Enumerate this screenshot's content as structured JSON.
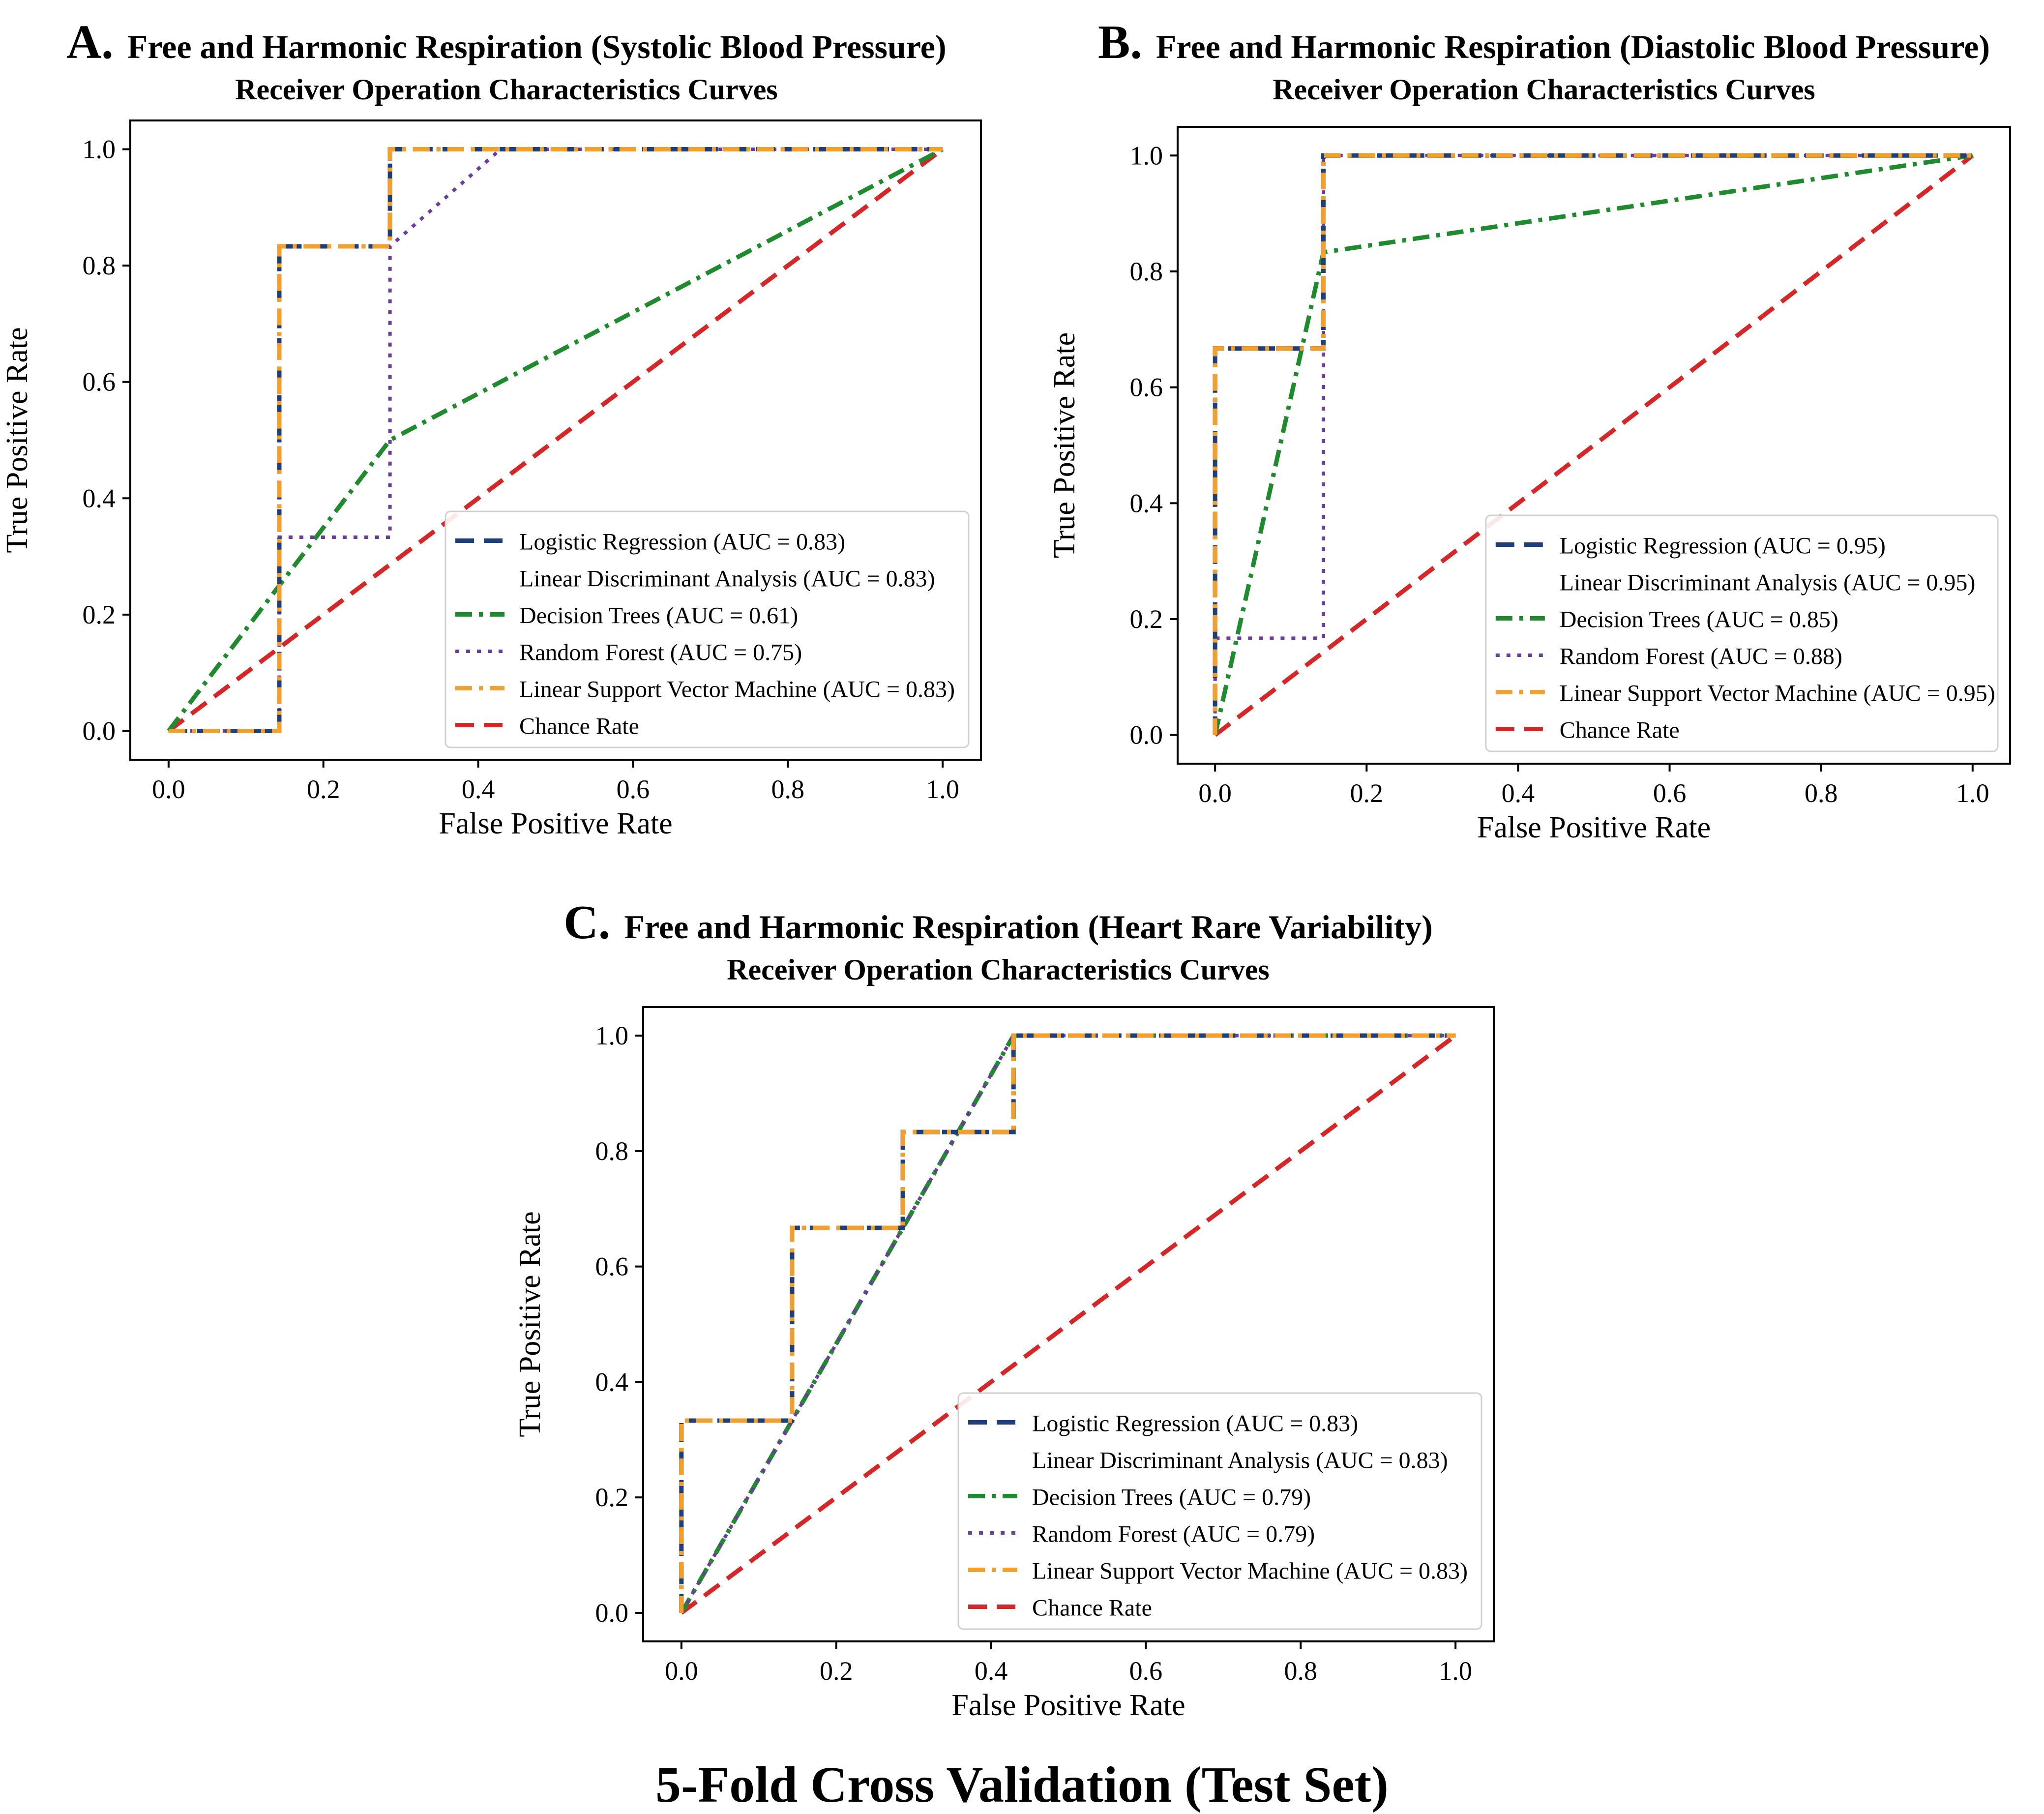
{
  "figure_title": "5-Fold Cross Validation (Test Set)",
  "chart_data": [
    {
      "panel": "A.",
      "type": "line",
      "title": "Free and Harmonic Respiration (Systolic Blood Pressure)",
      "subtitle": "Receiver Operation Characteristics Curves",
      "xlabel": "False Positive Rate",
      "ylabel": "True Positive Rate",
      "xlim": [
        0,
        1
      ],
      "ylim": [
        0,
        1
      ],
      "xticks": [
        "0.0",
        "0.2",
        "0.4",
        "0.6",
        "0.8",
        "1.0"
      ],
      "yticks": [
        "0.0",
        "0.2",
        "0.4",
        "0.6",
        "0.8",
        "1.0"
      ],
      "legend_position": "lower-right",
      "series": [
        {
          "name": "Logistic Regression (AUC = 0.83)",
          "style": "dashed",
          "color": "#1f3f7a",
          "x": [
            0,
            0.143,
            0.143,
            0.286,
            0.286,
            1.0
          ],
          "y": [
            0,
            0,
            0.833,
            0.833,
            1.0,
            1.0
          ]
        },
        {
          "name": "Linear Discriminant Analysis (AUC = 0.83)",
          "style": "dashdot",
          "color": "#111111",
          "x": [
            0,
            0.143,
            0.143,
            0.286,
            0.286,
            1.0
          ],
          "y": [
            0,
            0,
            0.833,
            0.833,
            1.0,
            1.0
          ]
        },
        {
          "name": "Decision Trees (AUC = 0.61)",
          "style": "dashdot",
          "color": "#1f8a2e",
          "x": [
            0,
            0.286,
            1.0
          ],
          "y": [
            0,
            0.5,
            1.0
          ]
        },
        {
          "name": "Random Forest (AUC = 0.75)",
          "style": "dotted",
          "color": "#6a3d9a",
          "x": [
            0,
            0.143,
            0.143,
            0.286,
            0.286,
            0.429,
            1.0
          ],
          "y": [
            0,
            0,
            0.333,
            0.333,
            0.833,
            1.0,
            1.0
          ]
        },
        {
          "name": "Linear Support Vector Machine (AUC = 0.83)",
          "style": "dashdot",
          "color": "#f0a030",
          "x": [
            0,
            0.143,
            0.143,
            0.286,
            0.286,
            1.0
          ],
          "y": [
            0,
            0,
            0.833,
            0.833,
            1.0,
            1.0
          ]
        },
        {
          "name": "Chance Rate",
          "style": "dashed",
          "color": "#d62728",
          "x": [
            0,
            1
          ],
          "y": [
            0,
            1
          ]
        }
      ]
    },
    {
      "panel": "B.",
      "type": "line",
      "title": "Free and Harmonic Respiration (Diastolic Blood Pressure)",
      "subtitle": "Receiver Operation Characteristics Curves",
      "xlabel": "False Positive Rate",
      "ylabel": "True Positive Rate",
      "xlim": [
        0,
        1
      ],
      "ylim": [
        0,
        1
      ],
      "xticks": [
        "0.0",
        "0.2",
        "0.4",
        "0.6",
        "0.8",
        "1.0"
      ],
      "yticks": [
        "0.0",
        "0.2",
        "0.4",
        "0.6",
        "0.8",
        "1.0"
      ],
      "legend_position": "lower-right",
      "series": [
        {
          "name": "Logistic Regression (AUC = 0.95)",
          "style": "dashed",
          "color": "#1f3f7a",
          "x": [
            0,
            0,
            0.143,
            0.143,
            1.0
          ],
          "y": [
            0,
            0.667,
            0.667,
            1.0,
            1.0
          ]
        },
        {
          "name": "Linear Discriminant Analysis (AUC = 0.95)",
          "style": "dashdot",
          "color": "#111111",
          "x": [
            0,
            0,
            0.143,
            0.143,
            1.0
          ],
          "y": [
            0,
            0.667,
            0.667,
            1.0,
            1.0
          ]
        },
        {
          "name": "Decision Trees (AUC = 0.85)",
          "style": "dashdot",
          "color": "#1f8a2e",
          "x": [
            0,
            0.143,
            1.0
          ],
          "y": [
            0,
            0.833,
            1.0
          ]
        },
        {
          "name": "Random Forest (AUC = 0.88)",
          "style": "dotted",
          "color": "#6a3d9a",
          "x": [
            0,
            0,
            0.143,
            0.143,
            1.0
          ],
          "y": [
            0,
            0.167,
            0.167,
            1.0,
            1.0
          ]
        },
        {
          "name": "Linear Support Vector Machine (AUC = 0.95)",
          "style": "dashdot",
          "color": "#f0a030",
          "x": [
            0,
            0,
            0.143,
            0.143,
            1.0
          ],
          "y": [
            0,
            0.667,
            0.667,
            1.0,
            1.0
          ]
        },
        {
          "name": "Chance Rate",
          "style": "dashed",
          "color": "#d62728",
          "x": [
            0,
            1
          ],
          "y": [
            0,
            1
          ]
        }
      ]
    },
    {
      "panel": "C.",
      "type": "line",
      "title": "Free and Harmonic Respiration (Heart Rare Variability)",
      "subtitle": "Receiver Operation Characteristics Curves",
      "xlabel": "False Positive Rate",
      "ylabel": "True Positive Rate",
      "xlim": [
        0,
        1
      ],
      "ylim": [
        0,
        1
      ],
      "xticks": [
        "0.0",
        "0.2",
        "0.4",
        "0.6",
        "0.8",
        "1.0"
      ],
      "yticks": [
        "0.0",
        "0.2",
        "0.4",
        "0.6",
        "0.8",
        "1.0"
      ],
      "legend_position": "lower-right",
      "series": [
        {
          "name": "Logistic Regression (AUC = 0.83)",
          "style": "dashed",
          "color": "#1f3f7a",
          "x": [
            0,
            0,
            0.143,
            0.143,
            0.286,
            0.286,
            0.429,
            0.429,
            1.0
          ],
          "y": [
            0,
            0.333,
            0.333,
            0.667,
            0.667,
            0.833,
            0.833,
            1.0,
            1.0
          ]
        },
        {
          "name": "Linear Discriminant Analysis (AUC = 0.83)",
          "style": "dashdot",
          "color": "#111111",
          "x": [
            0,
            0,
            0.143,
            0.143,
            0.286,
            0.286,
            0.429,
            0.429,
            1.0
          ],
          "y": [
            0,
            0.333,
            0.333,
            0.667,
            0.667,
            0.833,
            0.833,
            1.0,
            1.0
          ]
        },
        {
          "name": "Decision Trees (AUC = 0.79)",
          "style": "dashdot",
          "color": "#1f8a2e",
          "x": [
            0,
            0.429,
            1.0
          ],
          "y": [
            0,
            1.0,
            1.0
          ]
        },
        {
          "name": "Random Forest (AUC = 0.79)",
          "style": "dotted",
          "color": "#6a3d9a",
          "x": [
            0,
            0.429,
            1.0
          ],
          "y": [
            0,
            1.0,
            1.0
          ]
        },
        {
          "name": "Linear Support Vector Machine (AUC = 0.83)",
          "style": "dashdot",
          "color": "#f0a030",
          "x": [
            0,
            0,
            0.143,
            0.143,
            0.286,
            0.286,
            0.429,
            0.429,
            1.0
          ],
          "y": [
            0,
            0.333,
            0.333,
            0.667,
            0.667,
            0.833,
            0.833,
            1.0,
            1.0
          ]
        },
        {
          "name": "Chance Rate",
          "style": "dashed",
          "color": "#d62728",
          "x": [
            0,
            1
          ],
          "y": [
            0,
            1
          ]
        }
      ]
    }
  ]
}
